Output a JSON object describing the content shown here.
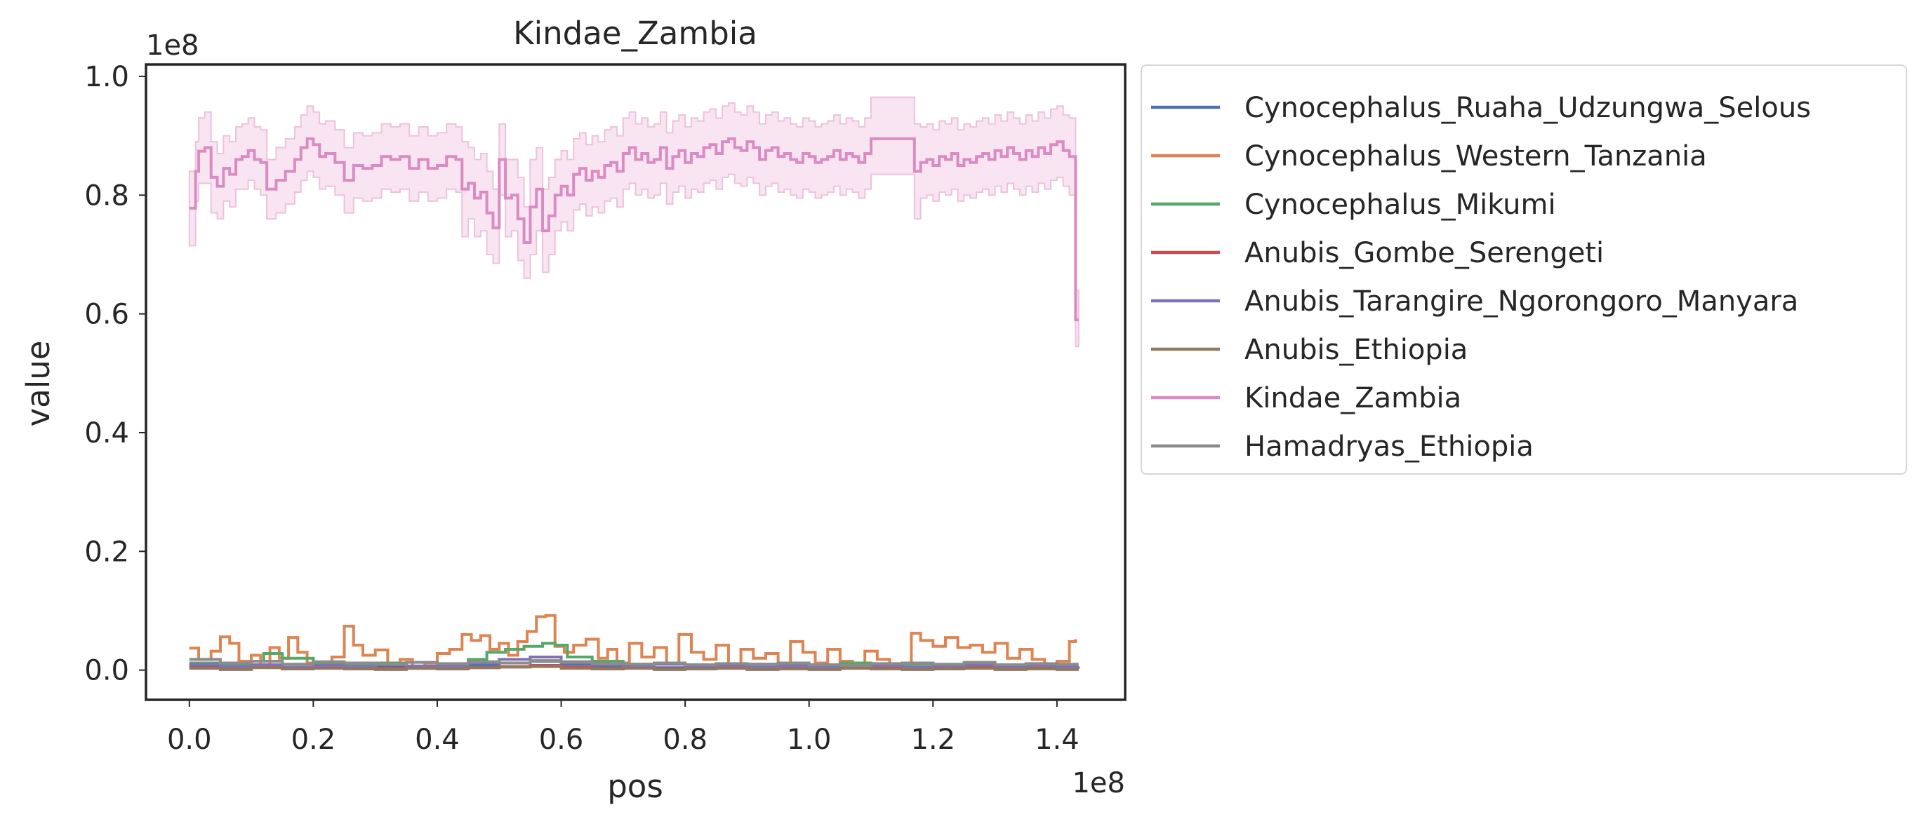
{
  "chart_data": {
    "type": "line",
    "title": "Kindae_Zambia",
    "xlabel": "pos",
    "ylabel": "value",
    "x_offset_label": "1e8",
    "y_offset_label": "1e8",
    "xlim": [
      -0.07,
      1.51
    ],
    "ylim": [
      -0.05,
      1.02
    ],
    "x_ticks": [
      0.0,
      0.2,
      0.4,
      0.6,
      0.8,
      1.0,
      1.2,
      1.4
    ],
    "x_tick_labels": [
      "0.0",
      "0.2",
      "0.4",
      "0.6",
      "0.8",
      "1.0",
      "1.2",
      "1.4"
    ],
    "y_ticks": [
      0.0,
      0.2,
      0.4,
      0.6,
      0.8,
      1.0
    ],
    "y_tick_labels": [
      "0.0",
      "0.2",
      "0.4",
      "0.6",
      "0.8",
      "1.0"
    ],
    "grid": false,
    "legend_placement": "outside upper right",
    "band_color": "#f5dcec",
    "series": [
      {
        "name": "Cynocephalus_Ruaha_Udzungwa_Selous",
        "color": "#4c72b0",
        "x": [
          0.0,
          0.05,
          0.1,
          0.15,
          0.2,
          0.25,
          0.3,
          0.35,
          0.4,
          0.45,
          0.5,
          0.55,
          0.6,
          0.65,
          0.7,
          0.75,
          0.8,
          0.85,
          0.9,
          0.95,
          1.0,
          1.05,
          1.1,
          1.15,
          1.2,
          1.25,
          1.3,
          1.35,
          1.4,
          1.435
        ],
        "values": [
          0.008,
          0.004,
          0.006,
          0.003,
          0.005,
          0.004,
          0.007,
          0.003,
          0.005,
          0.008,
          0.012,
          0.015,
          0.01,
          0.006,
          0.005,
          0.004,
          0.006,
          0.003,
          0.005,
          0.004,
          0.003,
          0.005,
          0.004,
          0.002,
          0.006,
          0.004,
          0.003,
          0.004,
          0.003,
          0.003
        ]
      },
      {
        "name": "Cynocephalus_Western_Tanzania",
        "color": "#dd8452",
        "x": [
          0.0,
          0.015,
          0.035,
          0.05,
          0.065,
          0.08,
          0.1,
          0.115,
          0.13,
          0.145,
          0.16,
          0.175,
          0.19,
          0.21,
          0.23,
          0.25,
          0.265,
          0.28,
          0.3,
          0.32,
          0.34,
          0.36,
          0.38,
          0.4,
          0.42,
          0.44,
          0.455,
          0.47,
          0.485,
          0.5,
          0.515,
          0.53,
          0.545,
          0.56,
          0.575,
          0.59,
          0.605,
          0.62,
          0.64,
          0.66,
          0.675,
          0.69,
          0.71,
          0.73,
          0.75,
          0.77,
          0.79,
          0.81,
          0.83,
          0.85,
          0.87,
          0.89,
          0.91,
          0.93,
          0.95,
          0.97,
          0.99,
          1.01,
          1.03,
          1.05,
          1.07,
          1.09,
          1.11,
          1.13,
          1.15,
          1.165,
          1.18,
          1.2,
          1.22,
          1.24,
          1.26,
          1.28,
          1.3,
          1.32,
          1.34,
          1.36,
          1.38,
          1.4,
          1.42,
          1.43
        ],
        "values": [
          0.037,
          0.018,
          0.032,
          0.056,
          0.045,
          0.015,
          0.025,
          0.008,
          0.038,
          0.02,
          0.055,
          0.03,
          0.012,
          0.01,
          0.022,
          0.074,
          0.042,
          0.025,
          0.034,
          0.01,
          0.018,
          0.006,
          0.012,
          0.028,
          0.035,
          0.06,
          0.05,
          0.058,
          0.035,
          0.045,
          0.025,
          0.048,
          0.065,
          0.09,
          0.092,
          0.04,
          0.03,
          0.042,
          0.052,
          0.02,
          0.035,
          0.012,
          0.045,
          0.022,
          0.038,
          0.012,
          0.06,
          0.03,
          0.018,
          0.042,
          0.01,
          0.035,
          0.02,
          0.028,
          0.008,
          0.048,
          0.03,
          0.012,
          0.035,
          0.015,
          0.008,
          0.032,
          0.018,
          0.006,
          0.01,
          0.062,
          0.05,
          0.04,
          0.055,
          0.038,
          0.042,
          0.03,
          0.045,
          0.02,
          0.035,
          0.018,
          0.01,
          0.015,
          0.048,
          0.052
        ]
      },
      {
        "name": "Cynocephalus_Mikumi",
        "color": "#55a868",
        "x": [
          0.0,
          0.05,
          0.1,
          0.12,
          0.15,
          0.2,
          0.25,
          0.3,
          0.35,
          0.4,
          0.45,
          0.48,
          0.51,
          0.54,
          0.57,
          0.59,
          0.61,
          0.65,
          0.7,
          0.75,
          0.8,
          0.85,
          0.9,
          0.95,
          1.0,
          1.05,
          1.1,
          1.15,
          1.2,
          1.25,
          1.3,
          1.35,
          1.4,
          1.435
        ],
        "values": [
          0.012,
          0.008,
          0.015,
          0.028,
          0.02,
          0.01,
          0.008,
          0.012,
          0.006,
          0.01,
          0.018,
          0.03,
          0.035,
          0.04,
          0.045,
          0.042,
          0.022,
          0.015,
          0.01,
          0.012,
          0.008,
          0.006,
          0.01,
          0.008,
          0.006,
          0.012,
          0.008,
          0.01,
          0.006,
          0.008,
          0.005,
          0.007,
          0.006,
          0.006
        ]
      },
      {
        "name": "Anubis_Gombe_Serengeti",
        "color": "#c44e52",
        "x": [
          0.0,
          0.05,
          0.1,
          0.15,
          0.2,
          0.25,
          0.3,
          0.35,
          0.4,
          0.45,
          0.5,
          0.55,
          0.6,
          0.65,
          0.7,
          0.75,
          0.8,
          0.85,
          0.9,
          0.95,
          1.0,
          1.05,
          1.1,
          1.15,
          1.2,
          1.25,
          1.3,
          1.35,
          1.4,
          1.435
        ],
        "values": [
          0.004,
          0.002,
          0.005,
          0.003,
          0.004,
          0.002,
          0.003,
          0.005,
          0.002,
          0.004,
          0.006,
          0.008,
          0.005,
          0.003,
          0.004,
          0.002,
          0.003,
          0.004,
          0.002,
          0.003,
          0.002,
          0.004,
          0.003,
          0.002,
          0.003,
          0.004,
          0.002,
          0.003,
          0.002,
          0.002
        ]
      },
      {
        "name": "Anubis_Tarangire_Ngorongoro_Manyara",
        "color": "#8172b3",
        "x": [
          0.0,
          0.05,
          0.1,
          0.15,
          0.2,
          0.25,
          0.3,
          0.35,
          0.4,
          0.45,
          0.5,
          0.55,
          0.6,
          0.65,
          0.7,
          0.75,
          0.8,
          0.85,
          0.9,
          0.95,
          1.0,
          1.05,
          1.1,
          1.15,
          1.2,
          1.25,
          1.3,
          1.35,
          1.4,
          1.435
        ],
        "values": [
          0.01,
          0.006,
          0.009,
          0.005,
          0.008,
          0.006,
          0.01,
          0.007,
          0.006,
          0.012,
          0.018,
          0.022,
          0.014,
          0.009,
          0.007,
          0.01,
          0.006,
          0.008,
          0.005,
          0.007,
          0.004,
          0.006,
          0.008,
          0.005,
          0.007,
          0.009,
          0.006,
          0.008,
          0.005,
          0.006
        ]
      },
      {
        "name": "Anubis_Ethiopia",
        "color": "#937860",
        "x": [
          0.0,
          0.05,
          0.1,
          0.15,
          0.2,
          0.25,
          0.3,
          0.35,
          0.4,
          0.45,
          0.5,
          0.55,
          0.6,
          0.65,
          0.7,
          0.75,
          0.8,
          0.85,
          0.9,
          0.95,
          1.0,
          1.05,
          1.1,
          1.15,
          1.2,
          1.25,
          1.3,
          1.35,
          1.4,
          1.435
        ],
        "values": [
          0.003,
          0.001,
          0.004,
          0.002,
          0.003,
          0.002,
          0.001,
          0.003,
          0.002,
          0.004,
          0.005,
          0.006,
          0.003,
          0.002,
          0.003,
          0.001,
          0.002,
          0.003,
          0.001,
          0.002,
          0.001,
          0.003,
          0.002,
          0.001,
          0.002,
          0.003,
          0.001,
          0.002,
          0.001,
          0.001
        ]
      },
      {
        "name": "Kindae_Zambia",
        "color": "#da8bc3",
        "x": [
          0.0,
          0.01,
          0.015,
          0.025,
          0.035,
          0.045,
          0.055,
          0.065,
          0.075,
          0.085,
          0.095,
          0.105,
          0.115,
          0.125,
          0.14,
          0.155,
          0.17,
          0.18,
          0.19,
          0.2,
          0.21,
          0.22,
          0.235,
          0.25,
          0.265,
          0.28,
          0.295,
          0.31,
          0.325,
          0.34,
          0.355,
          0.37,
          0.385,
          0.4,
          0.415,
          0.43,
          0.44,
          0.45,
          0.46,
          0.47,
          0.48,
          0.49,
          0.5,
          0.51,
          0.52,
          0.53,
          0.54,
          0.55,
          0.56,
          0.57,
          0.58,
          0.59,
          0.6,
          0.61,
          0.62,
          0.63,
          0.64,
          0.65,
          0.66,
          0.67,
          0.68,
          0.69,
          0.7,
          0.71,
          0.72,
          0.73,
          0.74,
          0.75,
          0.76,
          0.77,
          0.78,
          0.79,
          0.8,
          0.81,
          0.82,
          0.83,
          0.84,
          0.85,
          0.86,
          0.87,
          0.88,
          0.89,
          0.9,
          0.91,
          0.92,
          0.93,
          0.94,
          0.95,
          0.96,
          0.97,
          0.98,
          0.99,
          1.0,
          1.01,
          1.02,
          1.03,
          1.04,
          1.05,
          1.06,
          1.07,
          1.08,
          1.09,
          1.1,
          1.17,
          1.18,
          1.19,
          1.2,
          1.21,
          1.22,
          1.23,
          1.24,
          1.25,
          1.26,
          1.27,
          1.28,
          1.29,
          1.3,
          1.31,
          1.32,
          1.33,
          1.34,
          1.35,
          1.36,
          1.37,
          1.38,
          1.39,
          1.4,
          1.41,
          1.42,
          1.43,
          1.435
        ],
        "values": [
          0.778,
          0.84,
          0.874,
          0.88,
          0.83,
          0.815,
          0.845,
          0.835,
          0.86,
          0.865,
          0.875,
          0.86,
          0.855,
          0.81,
          0.825,
          0.84,
          0.86,
          0.88,
          0.895,
          0.885,
          0.865,
          0.87,
          0.855,
          0.825,
          0.85,
          0.845,
          0.85,
          0.865,
          0.86,
          0.865,
          0.845,
          0.86,
          0.845,
          0.85,
          0.865,
          0.86,
          0.81,
          0.82,
          0.795,
          0.805,
          0.77,
          0.745,
          0.86,
          0.795,
          0.8,
          0.76,
          0.72,
          0.78,
          0.81,
          0.74,
          0.765,
          0.8,
          0.815,
          0.8,
          0.835,
          0.845,
          0.825,
          0.84,
          0.83,
          0.85,
          0.855,
          0.84,
          0.87,
          0.88,
          0.86,
          0.87,
          0.855,
          0.86,
          0.88,
          0.845,
          0.865,
          0.875,
          0.855,
          0.87,
          0.865,
          0.88,
          0.885,
          0.87,
          0.89,
          0.895,
          0.88,
          0.875,
          0.89,
          0.88,
          0.86,
          0.875,
          0.88,
          0.865,
          0.87,
          0.86,
          0.855,
          0.87,
          0.865,
          0.855,
          0.86,
          0.865,
          0.875,
          0.86,
          0.87,
          0.865,
          0.855,
          0.87,
          0.895,
          0.84,
          0.855,
          0.86,
          0.85,
          0.865,
          0.86,
          0.87,
          0.85,
          0.86,
          0.855,
          0.865,
          0.87,
          0.86,
          0.875,
          0.865,
          0.88,
          0.87,
          0.86,
          0.875,
          0.865,
          0.88,
          0.87,
          0.885,
          0.89,
          0.875,
          0.865,
          0.59,
          0.59
        ],
        "lower": [
          0.715,
          0.79,
          0.82,
          0.82,
          0.77,
          0.76,
          0.79,
          0.78,
          0.81,
          0.81,
          0.825,
          0.81,
          0.8,
          0.76,
          0.77,
          0.785,
          0.805,
          0.825,
          0.84,
          0.83,
          0.81,
          0.815,
          0.8,
          0.77,
          0.795,
          0.79,
          0.795,
          0.81,
          0.805,
          0.81,
          0.79,
          0.805,
          0.79,
          0.795,
          0.81,
          0.805,
          0.73,
          0.76,
          0.73,
          0.74,
          0.7,
          0.685,
          0.8,
          0.73,
          0.74,
          0.69,
          0.66,
          0.7,
          0.74,
          0.67,
          0.7,
          0.74,
          0.755,
          0.74,
          0.775,
          0.785,
          0.765,
          0.78,
          0.77,
          0.79,
          0.795,
          0.78,
          0.81,
          0.82,
          0.8,
          0.81,
          0.795,
          0.8,
          0.82,
          0.785,
          0.805,
          0.815,
          0.795,
          0.81,
          0.805,
          0.82,
          0.825,
          0.81,
          0.83,
          0.835,
          0.82,
          0.815,
          0.83,
          0.82,
          0.8,
          0.815,
          0.82,
          0.805,
          0.81,
          0.8,
          0.795,
          0.81,
          0.805,
          0.795,
          0.8,
          0.805,
          0.815,
          0.8,
          0.81,
          0.805,
          0.795,
          0.81,
          0.835,
          0.76,
          0.795,
          0.8,
          0.79,
          0.805,
          0.8,
          0.81,
          0.79,
          0.8,
          0.795,
          0.805,
          0.81,
          0.8,
          0.815,
          0.805,
          0.82,
          0.81,
          0.8,
          0.815,
          0.805,
          0.82,
          0.81,
          0.825,
          0.83,
          0.815,
          0.8,
          0.545,
          0.545
        ],
        "upper": [
          0.84,
          0.89,
          0.93,
          0.94,
          0.89,
          0.87,
          0.9,
          0.89,
          0.915,
          0.92,
          0.93,
          0.915,
          0.91,
          0.86,
          0.88,
          0.895,
          0.915,
          0.935,
          0.95,
          0.94,
          0.92,
          0.925,
          0.91,
          0.88,
          0.905,
          0.9,
          0.905,
          0.92,
          0.915,
          0.92,
          0.9,
          0.915,
          0.9,
          0.905,
          0.92,
          0.915,
          0.89,
          0.88,
          0.86,
          0.87,
          0.84,
          0.81,
          0.92,
          0.86,
          0.86,
          0.83,
          0.78,
          0.86,
          0.88,
          0.81,
          0.83,
          0.86,
          0.875,
          0.86,
          0.895,
          0.905,
          0.885,
          0.9,
          0.89,
          0.91,
          0.915,
          0.9,
          0.93,
          0.94,
          0.92,
          0.93,
          0.915,
          0.92,
          0.94,
          0.905,
          0.925,
          0.935,
          0.915,
          0.93,
          0.925,
          0.94,
          0.945,
          0.93,
          0.95,
          0.955,
          0.94,
          0.935,
          0.95,
          0.94,
          0.92,
          0.935,
          0.94,
          0.925,
          0.93,
          0.92,
          0.915,
          0.93,
          0.925,
          0.915,
          0.92,
          0.925,
          0.935,
          0.92,
          0.93,
          0.925,
          0.915,
          0.93,
          0.965,
          0.92,
          0.915,
          0.92,
          0.91,
          0.925,
          0.92,
          0.93,
          0.91,
          0.92,
          0.915,
          0.925,
          0.93,
          0.92,
          0.935,
          0.925,
          0.94,
          0.93,
          0.92,
          0.935,
          0.925,
          0.94,
          0.93,
          0.945,
          0.95,
          0.935,
          0.93,
          0.64,
          0.64
        ]
      },
      {
        "name": "Hamadryas_Ethiopia",
        "color": "#8c8c8c",
        "x": [
          0.0,
          0.05,
          0.1,
          0.15,
          0.2,
          0.25,
          0.3,
          0.35,
          0.4,
          0.45,
          0.5,
          0.55,
          0.6,
          0.65,
          0.7,
          0.75,
          0.8,
          0.85,
          0.9,
          0.95,
          1.0,
          1.05,
          1.1,
          1.15,
          1.2,
          1.25,
          1.3,
          1.35,
          1.4,
          1.435
        ],
        "values": [
          0.018,
          0.012,
          0.015,
          0.01,
          0.014,
          0.012,
          0.01,
          0.013,
          0.011,
          0.014,
          0.012,
          0.016,
          0.013,
          0.011,
          0.01,
          0.012,
          0.009,
          0.011,
          0.01,
          0.012,
          0.009,
          0.008,
          0.011,
          0.012,
          0.01,
          0.013,
          0.009,
          0.011,
          0.01,
          0.01
        ]
      }
    ]
  }
}
